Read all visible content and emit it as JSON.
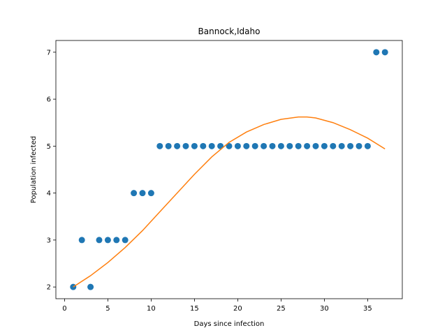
{
  "chart_data": {
    "type": "scatter",
    "title": "Bannock,Idaho",
    "xlabel": "Days since infection",
    "ylabel": "Population infected",
    "xlim": [
      -1,
      39
    ],
    "ylim": [
      1.75,
      7.25
    ],
    "xticks": [
      0,
      5,
      10,
      15,
      20,
      25,
      30,
      35
    ],
    "yticks": [
      2,
      3,
      4,
      5,
      6,
      7
    ],
    "grid": false,
    "colors": {
      "points": "#1f77b4",
      "fit": "#ff7f0e"
    },
    "series": [
      {
        "kind": "scatter",
        "x": [
          1,
          2,
          3,
          4,
          5,
          6,
          7,
          8,
          9,
          10,
          11,
          12,
          13,
          14,
          15,
          16,
          17,
          18,
          19,
          20,
          21,
          22,
          23,
          24,
          25,
          26,
          27,
          28,
          29,
          30,
          31,
          32,
          33,
          34,
          35,
          36,
          37
        ],
        "y": [
          2,
          3,
          2,
          3,
          3,
          3,
          3,
          4,
          4,
          4,
          5,
          5,
          5,
          5,
          5,
          5,
          5,
          5,
          5,
          5,
          5,
          5,
          5,
          5,
          5,
          5,
          5,
          5,
          5,
          5,
          5,
          5,
          5,
          5,
          5,
          7,
          7
        ]
      },
      {
        "kind": "line",
        "x": [
          1,
          3,
          5,
          7,
          9,
          11,
          13,
          15,
          17,
          19,
          21,
          23,
          25,
          27,
          28,
          29,
          31,
          33,
          35,
          37
        ],
        "y": [
          2.0,
          2.24,
          2.52,
          2.84,
          3.2,
          3.6,
          4.0,
          4.4,
          4.77,
          5.08,
          5.3,
          5.46,
          5.57,
          5.62,
          5.62,
          5.6,
          5.5,
          5.35,
          5.17,
          4.94
        ]
      }
    ]
  }
}
